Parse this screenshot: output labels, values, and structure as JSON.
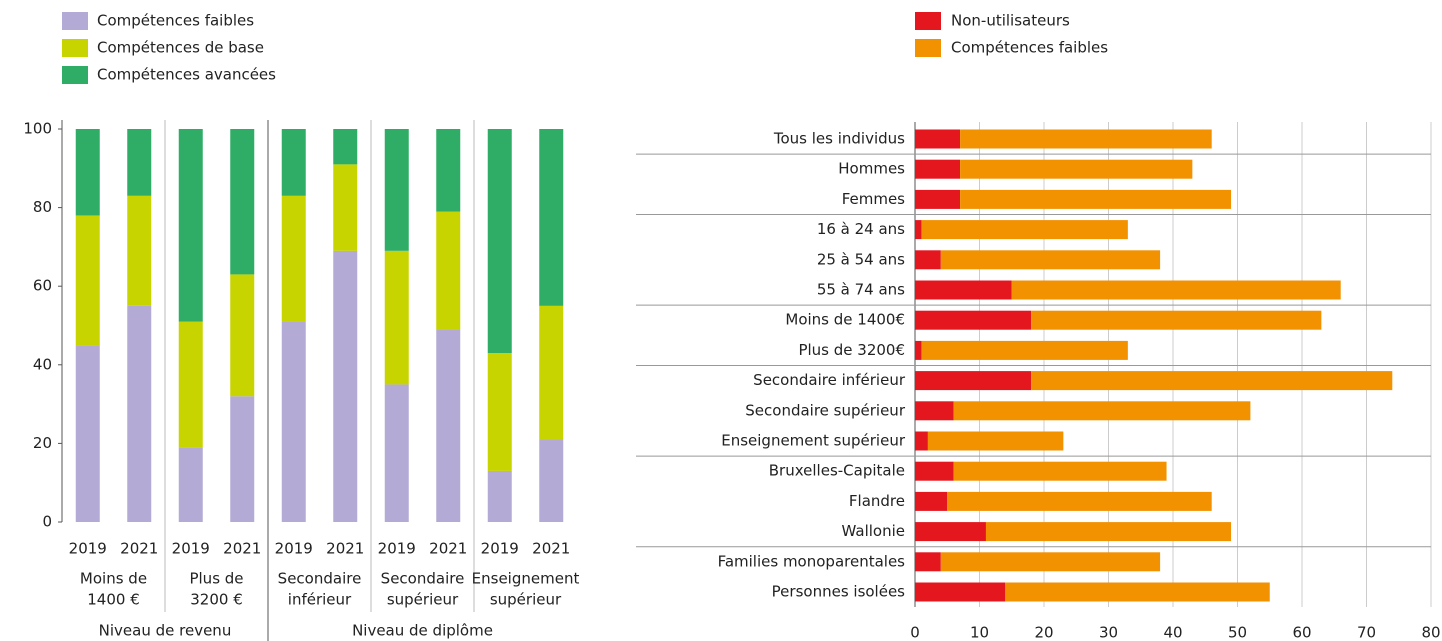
{
  "chart_data": [
    {
      "type": "bar",
      "orientation": "vertical",
      "stacked": true,
      "supergroups": [
        {
          "label": "Niveau de revenu",
          "groups": [
            {
              "label": [
                "Moins de",
                "1400 €"
              ],
              "categories": [
                "2019",
                "2021"
              ]
            },
            {
              "label": [
                "Plus de",
                "3200 €"
              ],
              "categories": [
                "2019",
                "2021"
              ]
            }
          ]
        },
        {
          "label": "Niveau de diplôme",
          "groups": [
            {
              "label": [
                "Secondaire",
                "inférieur"
              ],
              "categories": [
                "2019",
                "2021"
              ]
            },
            {
              "label": [
                "Secondaire",
                "supérieur"
              ],
              "categories": [
                "2019",
                "2021"
              ]
            },
            {
              "label": [
                "Enseignement",
                "supérieur"
              ],
              "categories": [
                "2019",
                "2021"
              ]
            }
          ]
        }
      ],
      "series": [
        {
          "name": "Compétences faibles",
          "color": "#b3aad6",
          "values": [
            45,
            55,
            19,
            32,
            51,
            69,
            35,
            49,
            13,
            21
          ]
        },
        {
          "name": "Compétences de base",
          "color": "#c8d400",
          "values": [
            33,
            28,
            32,
            31,
            32,
            22,
            34,
            30,
            30,
            34
          ]
        },
        {
          "name": "Compétences avancées",
          "color": "#2fad66",
          "values": [
            22,
            17,
            49,
            37,
            17,
            9,
            31,
            21,
            57,
            45
          ]
        }
      ],
      "ylim": [
        0,
        100
      ],
      "yticks": [
        0,
        20,
        40,
        60,
        80,
        100
      ],
      "grid": false
    },
    {
      "type": "bar",
      "orientation": "horizontal",
      "stacked": true,
      "category_groups": [
        [
          "Tous les individus"
        ],
        [
          "Hommes",
          "Femmes"
        ],
        [
          "16 à 24 ans",
          "25 à 54 ans",
          "55 à 74 ans"
        ],
        [
          "Moins de 1400€",
          "Plus de 3200€"
        ],
        [
          "Secondaire inférieur",
          "Secondaire supérieur",
          "Enseignement supérieur"
        ],
        [
          "Bruxelles-Capitale",
          "Flandre",
          "Wallonie"
        ],
        [
          "Families monoparentales",
          "Personnes isolées"
        ]
      ],
      "series": [
        {
          "name": "Non-utilisateurs",
          "color": "#e4161e",
          "values": [
            7,
            7,
            7,
            1,
            4,
            15,
            18,
            1,
            18,
            6,
            2,
            6,
            5,
            11,
            4,
            14
          ]
        },
        {
          "name": "Compétences faibles",
          "color": "#f39200",
          "values": [
            39,
            36,
            42,
            32,
            34,
            51,
            45,
            32,
            56,
            46,
            21,
            33,
            41,
            38,
            34,
            41
          ]
        }
      ],
      "xlim": [
        0,
        80
      ],
      "xticks": [
        0,
        10,
        20,
        30,
        40,
        50,
        60,
        70,
        80
      ],
      "grid": true
    }
  ]
}
